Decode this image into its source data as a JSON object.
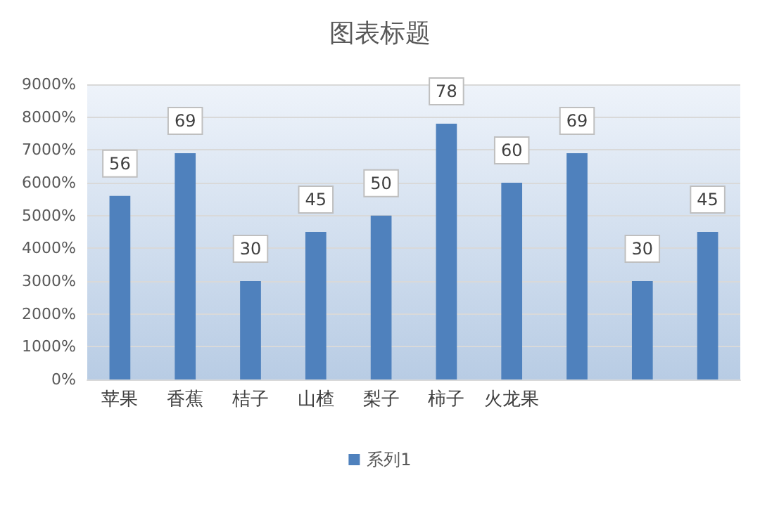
{
  "chart_data": {
    "type": "bar",
    "title": "图表标题",
    "categories": [
      "苹果",
      "香蕉",
      "桔子",
      "山楂",
      "梨子",
      "柿子",
      "火龙果",
      null,
      null,
      null
    ],
    "series": [
      {
        "name": "系列1",
        "color": "#4f81bd",
        "values": [
          56,
          69,
          30,
          45,
          50,
          78,
          60,
          69,
          30,
          45
        ]
      }
    ],
    "ylim": [
      0,
      90
    ],
    "yticks": [
      {
        "value": 0,
        "label": "0%"
      },
      {
        "value": 10,
        "label": "1000%"
      },
      {
        "value": 20,
        "label": "2000%"
      },
      {
        "value": 30,
        "label": "3000%"
      },
      {
        "value": 40,
        "label": "4000%"
      },
      {
        "value": 50,
        "label": "5000%"
      },
      {
        "value": 60,
        "label": "6000%"
      },
      {
        "value": 70,
        "label": "7000%"
      },
      {
        "value": 80,
        "label": "8000%"
      },
      {
        "value": 90,
        "label": "9000%"
      }
    ],
    "data_labels": true,
    "grid": "y",
    "legend": "bottom"
  }
}
